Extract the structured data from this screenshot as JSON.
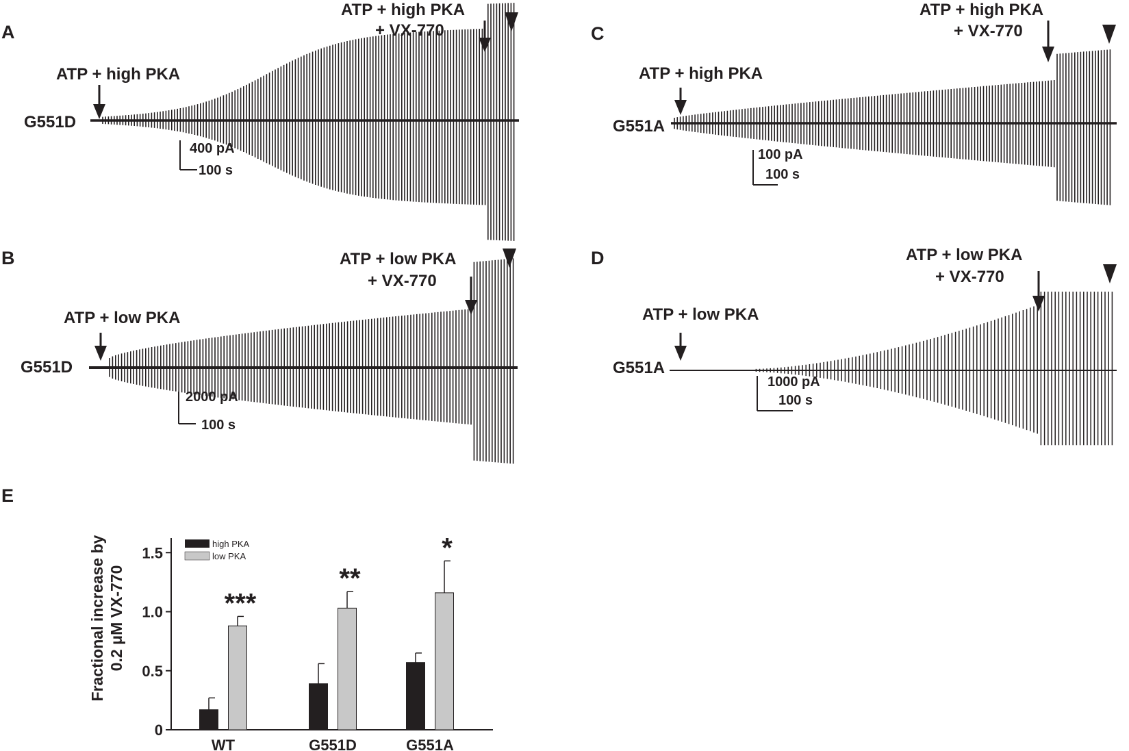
{
  "colors": {
    "ink": "#231f20",
    "high_pka": "#231f20",
    "low_pka": "#c8c8c8"
  },
  "traces": [
    {
      "panel": "A",
      "trace_label": "G551D",
      "first_arrow_label": [
        "ATP + high PKA"
      ],
      "second_arrow_label": [
        "ATP + high PKA",
        "+ VX-770"
      ],
      "scale_current": "400 pA",
      "scale_time": "100 s",
      "marker": "arrowhead"
    },
    {
      "panel": "B",
      "trace_label": "G551D",
      "first_arrow_label": [
        "ATP + low PKA"
      ],
      "second_arrow_label": [
        "ATP + low PKA",
        "+ VX-770"
      ],
      "scale_current": "2000 pA",
      "scale_time": "100 s",
      "marker": "arrowhead"
    },
    {
      "panel": "C",
      "trace_label": "G551A",
      "first_arrow_label": [
        "ATP + high PKA"
      ],
      "second_arrow_label": [
        "ATP + high PKA",
        "+ VX-770"
      ],
      "scale_current": "100 pA",
      "scale_time": "100 s",
      "marker": "arrowhead"
    },
    {
      "panel": "D",
      "trace_label": "G551A",
      "first_arrow_label": [
        "ATP + low PKA"
      ],
      "second_arrow_label": [
        "ATP + low PKA",
        "+ VX-770"
      ],
      "scale_current": "1000 pA",
      "scale_time": "100 s",
      "marker": "arrowhead"
    }
  ],
  "chart_data": {
    "type": "bar",
    "panel": "E",
    "categories": [
      "WT",
      "G551D",
      "G551A"
    ],
    "ylabel_lines": [
      "Fractional increase by",
      "0.2 μM VX-770"
    ],
    "ylim": [
      0,
      1.6
    ],
    "yticks": [
      0,
      0.5,
      1.0,
      1.5
    ],
    "ytick_labels": [
      "0",
      "0.5",
      "1.0",
      "1.5"
    ],
    "legend_position": "top-left",
    "grid": false,
    "series": [
      {
        "name": "high PKA",
        "color": "#231f20",
        "values": [
          0.17,
          0.39,
          0.57
        ],
        "errors": [
          0.1,
          0.17,
          0.08
        ]
      },
      {
        "name": "low PKA",
        "color": "#c8c8c8",
        "values": [
          0.88,
          1.03,
          1.16
        ],
        "errors": [
          0.08,
          0.14,
          0.27
        ]
      }
    ],
    "significance": [
      "***",
      "**",
      "*"
    ]
  }
}
